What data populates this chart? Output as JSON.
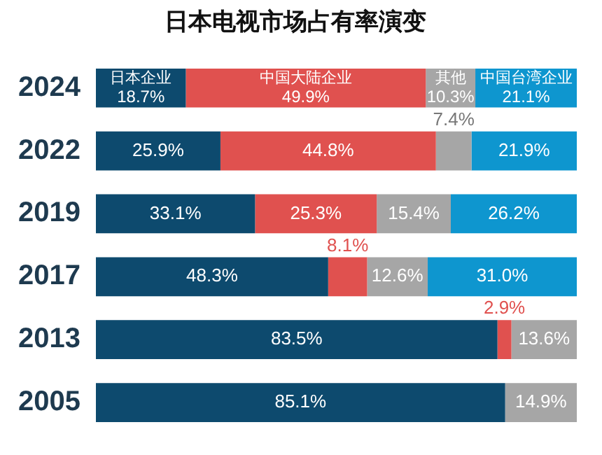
{
  "chart_data": {
    "type": "bar",
    "orientation": "horizontal",
    "stacked": true,
    "title": "日本电视市场占有率演变",
    "categories": [
      "2024",
      "2022",
      "2019",
      "2017",
      "2013",
      "2005"
    ],
    "xlim": [
      0,
      100
    ],
    "tick_labels": "y",
    "series": [
      {
        "name": "日本企业",
        "color": "#0d4a6e",
        "values": [
          18.7,
          25.9,
          33.1,
          48.3,
          83.5,
          85.1
        ],
        "value_labels": [
          "18.7%",
          "25.9%",
          "33.1%",
          "48.3%",
          "83.5%",
          "85.1%"
        ]
      },
      {
        "name": "中国大陆企业",
        "color": "#e0514f",
        "values": [
          49.9,
          44.8,
          25.3,
          8.1,
          2.9,
          null
        ],
        "value_labels": [
          "49.9%",
          "44.8%",
          "25.3%",
          "8.1%",
          "2.9%",
          null
        ]
      },
      {
        "name": "其他",
        "color": "#a6a6a6",
        "values": [
          10.3,
          7.4,
          15.4,
          12.6,
          13.6,
          14.9
        ],
        "value_labels": [
          "10.3%",
          "7.4%",
          "15.4%",
          "12.6%",
          "13.6%",
          "14.9%"
        ]
      },
      {
        "name": "中国台湾企业",
        "color": "#0e96cf",
        "values": [
          21.1,
          21.9,
          26.2,
          31.0,
          null,
          null
        ],
        "value_labels": [
          "21.1%",
          "21.9%",
          "26.2%",
          "31.0%",
          null,
          null
        ]
      }
    ]
  }
}
